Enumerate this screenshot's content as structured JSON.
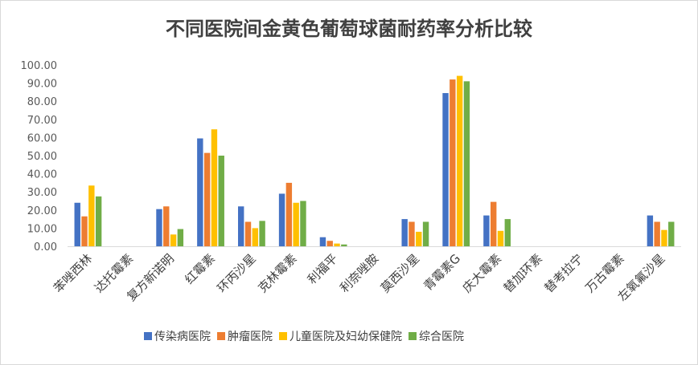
{
  "chart_data": {
    "type": "bar",
    "title": "不同医院间金黄色葡萄球菌耐药率分析比较",
    "xlabel": "",
    "ylabel": "",
    "ylim": [
      0,
      100
    ],
    "ytick_step": 10,
    "ytick_labels": [
      "0.00",
      "10.00",
      "20.00",
      "30.00",
      "40.00",
      "50.00",
      "60.00",
      "70.00",
      "80.00",
      "90.00",
      "100.00"
    ],
    "grid": false,
    "legend_position": "bottom",
    "categories": [
      "苯唑西林",
      "达托霉素",
      "复方新诺明",
      "红霉素",
      "环丙沙星",
      "克林霉素",
      "利福平",
      "利奈唑胺",
      "莫西沙星",
      "青霉素G",
      "庆大霉素",
      "替加环素",
      "替考拉宁",
      "万古霉素",
      "左氧氟沙星"
    ],
    "series": [
      {
        "name": "传染病医院",
        "color": "#4472C4",
        "values": [
          24.0,
          0,
          20.5,
          59.5,
          22.0,
          29.0,
          5.0,
          0,
          15.0,
          84.5,
          17.0,
          0,
          0,
          0,
          17.0
        ]
      },
      {
        "name": "肿瘤医院",
        "color": "#ED7D31",
        "values": [
          16.5,
          0,
          22.0,
          51.5,
          13.5,
          35.0,
          3.0,
          0,
          13.5,
          92.0,
          24.5,
          0,
          0,
          0,
          13.5
        ]
      },
      {
        "name": "儿童医院及妇幼保健院",
        "color": "#FFC000",
        "values": [
          33.5,
          0,
          6.5,
          64.5,
          10.0,
          24.0,
          1.5,
          0,
          8.0,
          94.0,
          8.5,
          0,
          0,
          0,
          9.0
        ]
      },
      {
        "name": "综合医院",
        "color": "#70AD47",
        "values": [
          27.5,
          0,
          9.5,
          50.0,
          14.0,
          25.0,
          1.0,
          0,
          13.5,
          91.0,
          15.0,
          0,
          0,
          0,
          13.5
        ]
      }
    ]
  }
}
